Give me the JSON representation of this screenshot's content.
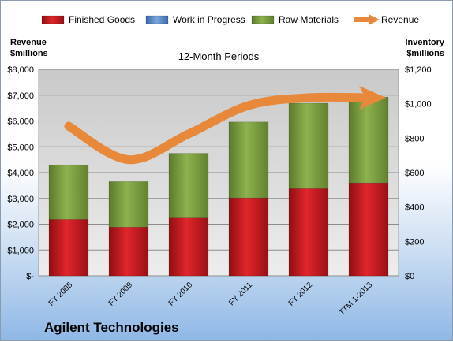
{
  "chart_data": {
    "type": "bar",
    "stacked": true,
    "subtitle": "12-Month Periods",
    "company": "Agilent Technologies",
    "left_axis_title": [
      "Revenue",
      "$millions"
    ],
    "right_axis_title": [
      "Inventory",
      "$millions"
    ],
    "categories": [
      "FY 2008",
      "FY 2009",
      "FY 2010",
      "FY 2011",
      "FY 2012",
      "TTM 1-2013"
    ],
    "series": [
      {
        "name": "Finished Goods",
        "axis": "right",
        "color": "#c0161c",
        "values": [
          328,
          283,
          336,
          453,
          507,
          540
        ]
      },
      {
        "name": "Work in Progress",
        "axis": "right",
        "color": "#4f81bd",
        "values": [
          0,
          0,
          0,
          0,
          0,
          0
        ]
      },
      {
        "name": "Raw Materials",
        "axis": "right",
        "color": "#77933c",
        "values": [
          317,
          265,
          376,
          441,
          496,
          499
        ]
      }
    ],
    "line": {
      "name": "Revenue",
      "axis": "left",
      "color": "#e8883a",
      "values": [
        5800,
        4500,
        5500,
        6600,
        6900,
        6900
      ]
    },
    "left_axis": {
      "min": 0,
      "max": 8000,
      "ticks": [
        "$-",
        "$1,000",
        "$2,000",
        "$3,000",
        "$4,000",
        "$5,000",
        "$6,000",
        "$7,000",
        "$8,000"
      ]
    },
    "right_axis": {
      "min": 0,
      "max": 1200,
      "ticks": [
        "$0",
        "$200",
        "$400",
        "$600",
        "$800",
        "$1,000",
        "$1,200"
      ]
    },
    "grid": true,
    "legend_position": "top"
  }
}
